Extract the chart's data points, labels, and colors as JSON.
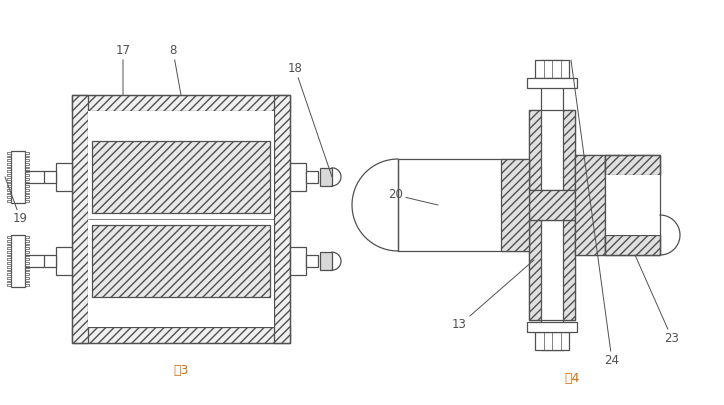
{
  "bg_color": "#ffffff",
  "line_color": "#505050",
  "fig3_label": "图3",
  "fig4_label": "图4",
  "caption_color": "#d4700a"
}
